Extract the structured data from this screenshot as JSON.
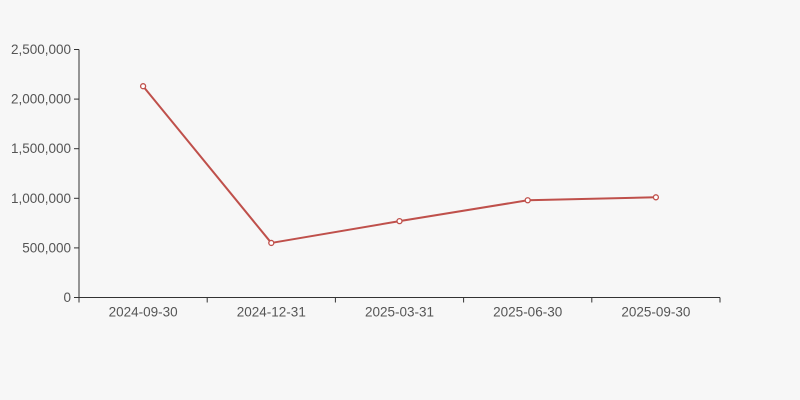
{
  "page": {
    "background_color": "#f7f7f7"
  },
  "chart_data": {
    "type": "line",
    "title": "",
    "xlabel": "",
    "ylabel": "",
    "categories": [
      "2024-09-30",
      "2024-12-31",
      "2025-03-31",
      "2025-06-30",
      "2025-09-30"
    ],
    "values": [
      2130000,
      550000,
      770000,
      980000,
      1010000
    ],
    "ylim": [
      0,
      2500000
    ],
    "ytick_step": 500000,
    "ytick_labels": [
      "0",
      "500,000",
      "1,000,000",
      "1,500,000",
      "2,000,000",
      "2,500,000"
    ],
    "grid": false,
    "legend": false,
    "line_color": "#bf504b",
    "marker_style": "empty-circle",
    "marker_fill": "#ffffff",
    "axis_color": "#333333",
    "label_color": "#555555"
  }
}
